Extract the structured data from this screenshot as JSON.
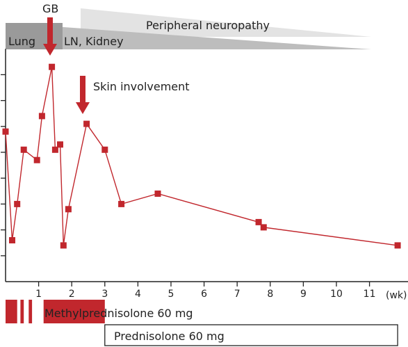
{
  "colors": {
    "series": "#c1272d",
    "band_light": "#e3e3e3",
    "band_mid": "#bdbdbd",
    "band_dark": "#9a9a9a",
    "axis": "#222222"
  },
  "annotations": {
    "gb": "GB",
    "skin": "Skin involvement",
    "lung": "Lung",
    "ln_kidney": "LN, Kidney",
    "peripheral": "Peripheral neuropathy"
  },
  "chart_data": {
    "type": "line",
    "title": "",
    "xlabel": "(wk)",
    "ylabel": "",
    "xlim": [
      0,
      12.2
    ],
    "ylim": [
      0,
      9
    ],
    "xticks": [
      1,
      2,
      3,
      4,
      5,
      6,
      7,
      8,
      9,
      10,
      11
    ],
    "yticks": [
      1,
      2,
      3,
      4,
      5,
      6,
      7,
      8
    ],
    "grid": false,
    "series": [
      {
        "points": [
          [
            0.0,
            5.8
          ],
          [
            0.2,
            1.6
          ],
          [
            0.35,
            3.0
          ],
          [
            0.55,
            5.1
          ],
          [
            0.95,
            4.7
          ],
          [
            1.1,
            6.4
          ],
          [
            1.4,
            8.3
          ],
          [
            1.5,
            5.1
          ],
          [
            1.65,
            5.3
          ],
          [
            1.75,
            1.4
          ],
          [
            1.9,
            2.8
          ],
          [
            2.45,
            6.1
          ],
          [
            3.0,
            5.1
          ],
          [
            3.5,
            3.0
          ],
          [
            4.6,
            3.4
          ],
          [
            7.65,
            2.3
          ],
          [
            7.8,
            2.1
          ],
          [
            11.85,
            1.4
          ]
        ]
      }
    ],
    "treatments": [
      {
        "label": "Methylprednisolone 60 mg",
        "segments": [
          [
            0.0,
            0.35
          ],
          [
            0.45,
            0.55
          ],
          [
            0.7,
            0.8
          ],
          [
            1.15,
            3.0
          ]
        ]
      },
      {
        "label": "Prednisolone 60 mg",
        "segments": [
          [
            3.0,
            11.85
          ]
        ]
      }
    ]
  }
}
